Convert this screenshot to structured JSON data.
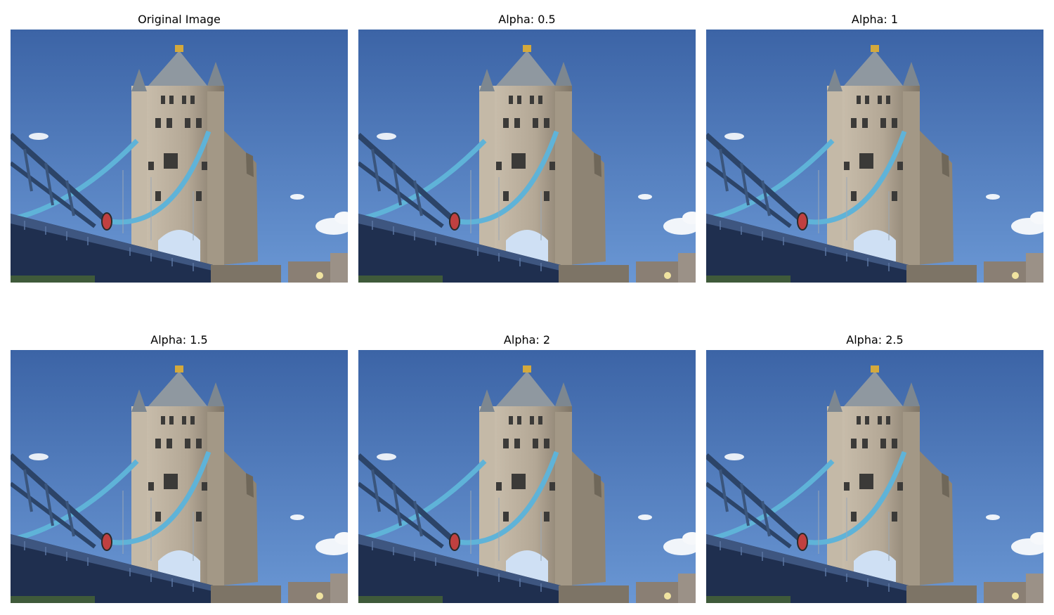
{
  "panels": [
    {
      "title": "Original Image"
    },
    {
      "title": "Alpha: 0.5"
    },
    {
      "title": "Alpha: 1"
    },
    {
      "title": "Alpha: 1.5"
    },
    {
      "title": "Alpha: 2"
    },
    {
      "title": "Alpha: 2.5"
    }
  ],
  "colors": {
    "sky_top": "#3f68a8",
    "sky_bottom": "#5f8fd0",
    "stone": "#b8ad9d",
    "stone_dark": "#6e6557",
    "cable": "#5fb3d8",
    "girder": "#1f2f4f",
    "roof": "#8f98a0"
  }
}
